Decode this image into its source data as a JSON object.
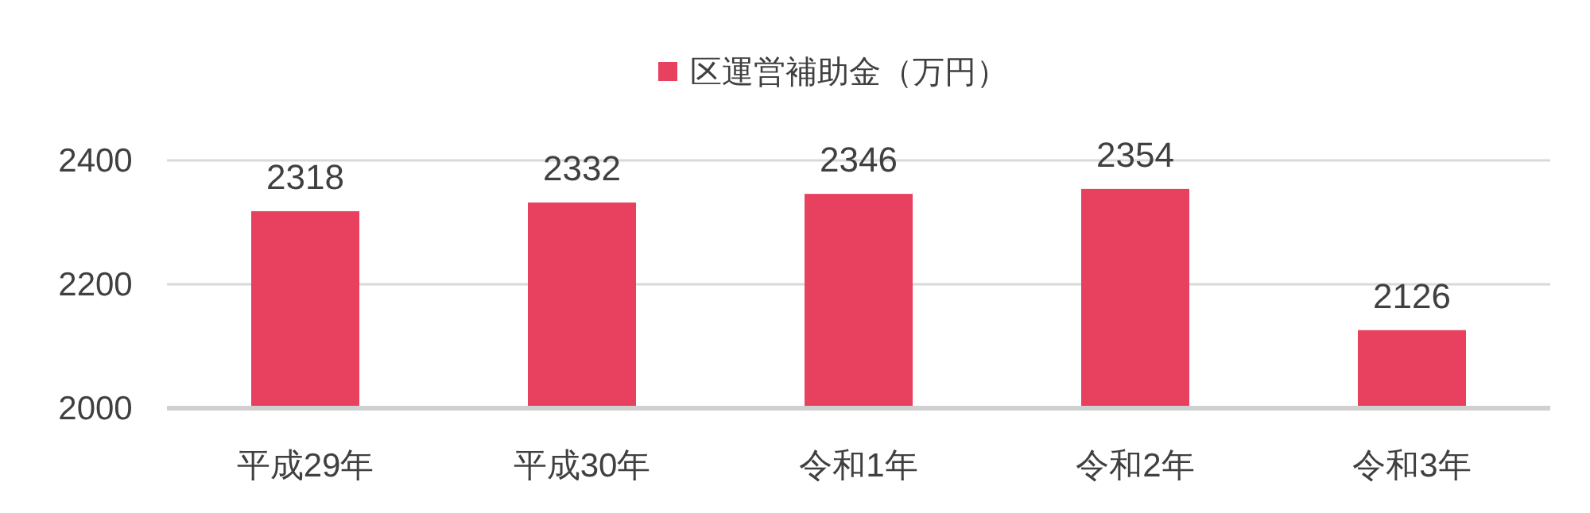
{
  "chart_data": {
    "type": "bar",
    "categories": [
      "平成29年",
      "平成30年",
      "令和1年",
      "令和2年",
      "令和3年"
    ],
    "series": [
      {
        "name": "区運営補助金（万円）",
        "color": "#e8405f",
        "values": [
          2318,
          2332,
          2346,
          2354,
          2126
        ]
      }
    ],
    "ylim": [
      2000,
      2400
    ],
    "yticks": [
      2000,
      2200,
      2400
    ],
    "grid": "y",
    "legend": "top",
    "data_labels": true
  }
}
